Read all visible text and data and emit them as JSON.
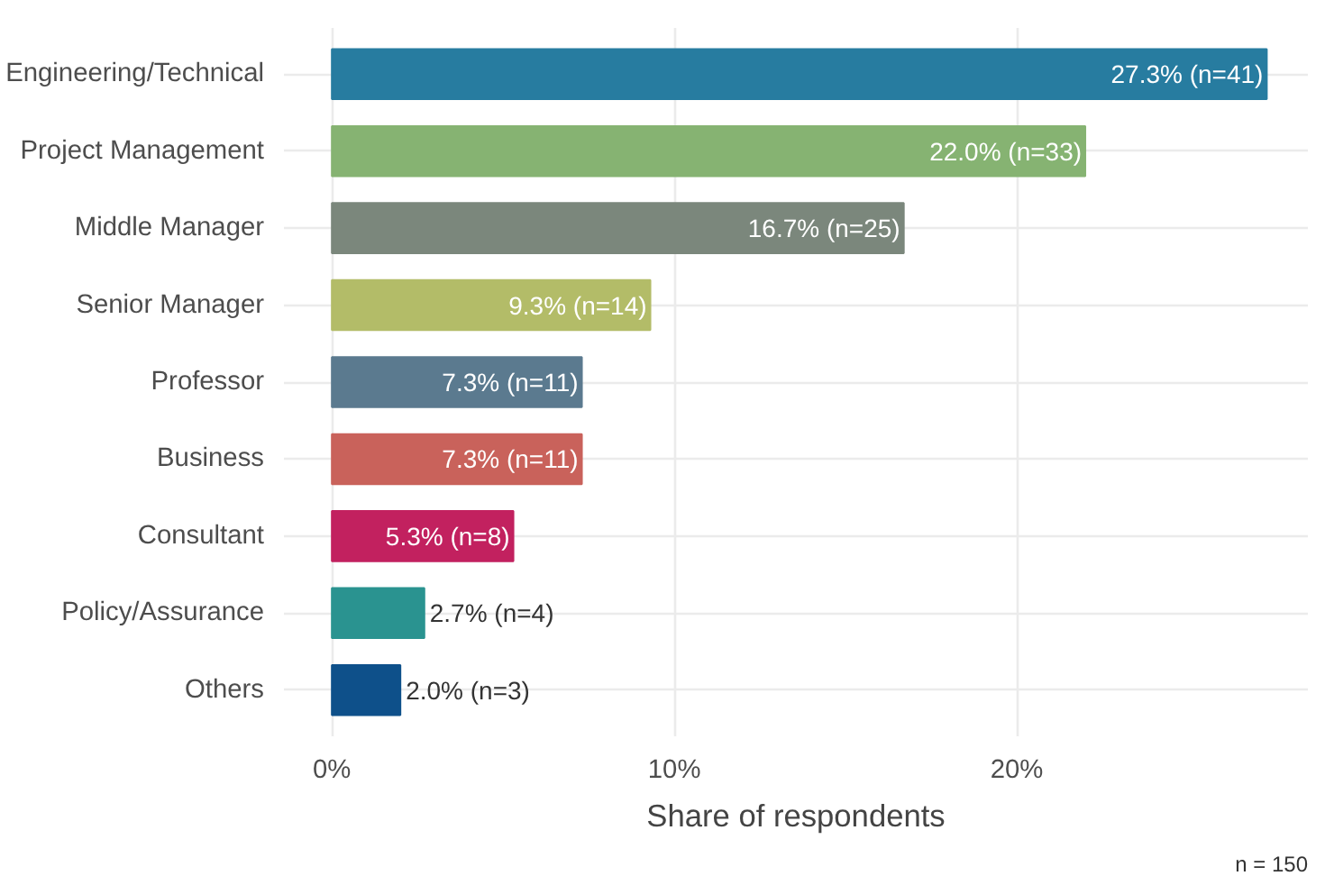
{
  "chart_data": {
    "type": "bar",
    "orientation": "horizontal",
    "categories": [
      "Engineering/Technical",
      "Project Management",
      "Middle Manager",
      "Senior Manager",
      "Professor",
      "Business",
      "Consultant",
      "Policy/Assurance",
      "Others"
    ],
    "values": [
      27.3,
      22.0,
      16.7,
      9.3,
      7.3,
      7.3,
      5.3,
      2.7,
      2.0
    ],
    "colors": [
      "#277ca0",
      "#86b372",
      "#7b877c",
      "#b3bc68",
      "#5b7a8f",
      "#c9625b",
      "#c2215f",
      "#2a9390",
      "#0e508a"
    ],
    "value_labels": [
      "27.3% (n=41)",
      "22.0% (n=33)",
      "16.7% (n=25)",
      "9.3% (n=14)",
      "7.3% (n=11)",
      "7.3% (n=11)",
      "5.3% (n=8)",
      "2.7% (n=4)",
      "2.0% (n=3)"
    ],
    "xlim": [
      -1.4,
      28.5
    ],
    "xticks": [
      {
        "value": 0,
        "label": "0%"
      },
      {
        "value": 10,
        "label": "10%"
      },
      {
        "value": 20,
        "label": "20%"
      }
    ],
    "xlabel": "Share of respondents",
    "grid": true,
    "annotations": [
      "n = 150"
    ]
  }
}
